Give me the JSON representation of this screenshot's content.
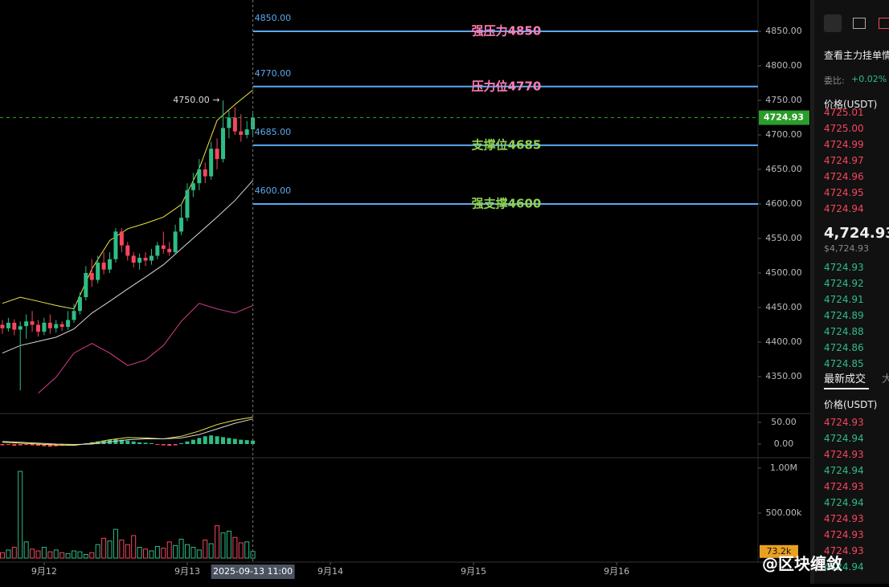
{
  "chart_data": [
    {
      "type": "candlestick",
      "x": [
        -7,
        -6,
        -5,
        -4,
        -3,
        -2,
        -1,
        0,
        1,
        2,
        3,
        4,
        5,
        6,
        7,
        8,
        9,
        10,
        11,
        12,
        13,
        14,
        15,
        16,
        17,
        18,
        19,
        20,
        21,
        22,
        23,
        24,
        25,
        26,
        27,
        28,
        29,
        30,
        31,
        32,
        33,
        34,
        35
      ],
      "open": [
        4425,
        4420,
        4428,
        4418,
        4423,
        4430,
        4425,
        4415,
        4428,
        4420,
        4426,
        4422,
        4432,
        4445,
        4465,
        4500,
        4490,
        4515,
        4505,
        4520,
        4560,
        4540,
        4525,
        4515,
        4522,
        4518,
        4525,
        4540,
        4535,
        4530,
        4560,
        4580,
        4620,
        4630,
        4650,
        4640,
        4680,
        4665,
        4710,
        4725,
        4705,
        4700,
        4708
      ],
      "high": [
        4432,
        4435,
        4433,
        4430,
        4440,
        4445,
        4432,
        4435,
        4440,
        4432,
        4430,
        4445,
        4455,
        4472,
        4510,
        4520,
        4525,
        4530,
        4530,
        4565,
        4565,
        4545,
        4530,
        4528,
        4530,
        4535,
        4545,
        4560,
        4545,
        4570,
        4600,
        4630,
        4645,
        4665,
        4660,
        4690,
        4695,
        4750,
        4735,
        4740,
        4730,
        4720,
        4732
      ],
      "low": [
        4412,
        4415,
        4410,
        4330,
        4405,
        4415,
        4408,
        4410,
        4412,
        4414,
        4416,
        4418,
        4428,
        4440,
        4460,
        4480,
        4485,
        4498,
        4500,
        4515,
        4530,
        4518,
        4508,
        4505,
        4510,
        4512,
        4520,
        4528,
        4525,
        4528,
        4555,
        4575,
        4610,
        4620,
        4630,
        4635,
        4650,
        4660,
        4695,
        4700,
        4690,
        4695,
        4700
      ],
      "close": [
        4420,
        4428,
        4418,
        4423,
        4430,
        4425,
        4415,
        4428,
        4420,
        4426,
        4422,
        4432,
        4445,
        4465,
        4500,
        4490,
        4515,
        4505,
        4520,
        4560,
        4540,
        4525,
        4515,
        4522,
        4518,
        4525,
        4540,
        4535,
        4530,
        4560,
        4580,
        4620,
        4630,
        4650,
        4640,
        4680,
        4665,
        4710,
        4725,
        4705,
        4700,
        4708,
        4724.93
      ],
      "up_color": "#2ebd85",
      "down_color": "#f6465d",
      "lines": [
        {
          "color": "#f0e442",
          "x": [
            -7,
            -4,
            -1,
            2,
            5,
            8,
            11,
            14,
            17,
            20,
            23,
            26,
            29,
            32,
            35
          ],
          "values": [
            4456,
            4465,
            4459,
            4453,
            4448,
            4506,
            4547,
            4564,
            4572,
            4581,
            4599,
            4651,
            4721,
            4744,
            4765
          ]
        },
        {
          "color": "#d8d8d8",
          "x": [
            -7,
            -4,
            -1,
            2,
            5,
            8,
            11,
            14,
            17,
            20,
            23,
            26,
            29,
            32,
            35
          ],
          "values": [
            4384,
            4395,
            4401,
            4407,
            4419,
            4442,
            4459,
            4477,
            4494,
            4512,
            4535,
            4558,
            4581,
            4605,
            4634
          ]
        },
        {
          "color": "#d63f8c",
          "x": [
            -7,
            -4,
            -1,
            2,
            5,
            8,
            11,
            14,
            17,
            20,
            23,
            26,
            29,
            32,
            35
          ],
          "values": [
            null,
            null,
            4326,
            4349,
            4384,
            4398,
            4384,
            4366,
            4374,
            4395,
            4430,
            4456,
            4448,
            4442,
            4453
          ]
        }
      ],
      "xlim": [
        -7.4,
        119.7
      ],
      "xticks": [
        {
          "value": 0,
          "label": "9月12"
        },
        {
          "value": 24,
          "label": "9月13"
        },
        {
          "value": 48,
          "label": "9月14"
        },
        {
          "value": 72,
          "label": "9月15"
        },
        {
          "value": 96,
          "label": "9月16"
        }
      ],
      "ylim": [
        4296.5,
        4895.3
      ],
      "yticks": [
        {
          "value": 4350,
          "label": "4350.00"
        },
        {
          "value": 4400,
          "label": "4400.00"
        },
        {
          "value": 4450,
          "label": "4450.00"
        },
        {
          "value": 4500,
          "label": "4500.00"
        },
        {
          "value": 4550,
          "label": "4550.00"
        },
        {
          "value": 4600,
          "label": "4600.00"
        },
        {
          "value": 4650,
          "label": "4650.00"
        },
        {
          "value": 4700,
          "label": "4700.00"
        },
        {
          "value": 4750,
          "label": "4750.00"
        },
        {
          "value": 4800,
          "label": "4800.00"
        },
        {
          "value": 4850,
          "label": "4850.00"
        }
      ],
      "levels": [
        {
          "value": 4850,
          "label": "4850.00",
          "text": "强压力4850",
          "color": "#ff7eb6"
        },
        {
          "value": 4770,
          "label": "4770.00",
          "text": "压力位4770",
          "color": "#ff7eb6"
        },
        {
          "value": 4685,
          "label": "4685.00",
          "text": "支撑位4685",
          "color": "#8fd14f"
        },
        {
          "value": 4600,
          "label": "4600.00",
          "text": "强支撑4600",
          "color": "#8fd14f"
        }
      ],
      "level_color": "#5aa9f0",
      "high_label": {
        "x": 30,
        "value": 4750,
        "label": "4750.00 →"
      },
      "last_price": {
        "value": 4724.93,
        "label": "4724.93",
        "color": "#2a9d2a"
      },
      "crosshair": {
        "x": 35,
        "label": "2025-09-13 11:00"
      }
    },
    {
      "type": "macd",
      "x": [
        -7,
        -6,
        -5,
        -4,
        -3,
        -2,
        -1,
        0,
        1,
        2,
        3,
        4,
        5,
        6,
        7,
        8,
        9,
        10,
        11,
        12,
        13,
        14,
        15,
        16,
        17,
        18,
        19,
        20,
        21,
        22,
        23,
        24,
        25,
        26,
        27,
        28,
        29,
        30,
        31,
        32,
        33,
        34,
        35
      ],
      "values": [
        -3,
        -2,
        -4,
        -3,
        -2,
        -3,
        -4,
        -5,
        -6,
        -5,
        -4,
        -3,
        -2,
        -1,
        2,
        4,
        6,
        8,
        10,
        12,
        10,
        8,
        6,
        4,
        3,
        2,
        -2,
        -3,
        -4,
        -3,
        2,
        6,
        10,
        14,
        18,
        20,
        18,
        16,
        14,
        12,
        10,
        9,
        8
      ],
      "up_color": "#2ebd85",
      "down_color": "#f6465d",
      "lines": [
        {
          "color": "#f0e442",
          "x": [
            -7,
            -4,
            -1,
            2,
            5,
            8,
            11,
            14,
            17,
            20,
            23,
            26,
            29,
            32,
            35
          ],
          "values": [
            4,
            2,
            0,
            -2,
            -3,
            2,
            10,
            15,
            14,
            12,
            18,
            30,
            45,
            55,
            62
          ]
        },
        {
          "color": "#d8d8d8",
          "x": [
            -7,
            -4,
            -1,
            2,
            5,
            8,
            11,
            14,
            17,
            20,
            23,
            26,
            29,
            32,
            35
          ],
          "values": [
            6,
            4,
            2,
            0,
            -1,
            0,
            5,
            10,
            12,
            12,
            14,
            22,
            35,
            48,
            58
          ]
        }
      ],
      "ylim": [
        -27.8,
        70.4
      ],
      "yticks": [
        {
          "value": 0,
          "label": "0.00"
        },
        {
          "value": 50,
          "label": "50.00"
        }
      ]
    },
    {
      "type": "volume",
      "x": [
        -7,
        -6,
        -5,
        -4,
        -3,
        -2,
        -1,
        0,
        1,
        2,
        3,
        4,
        5,
        6,
        7,
        8,
        9,
        10,
        11,
        12,
        13,
        14,
        15,
        16,
        17,
        18,
        19,
        20,
        21,
        22,
        23,
        24,
        25,
        26,
        27,
        28,
        29,
        30,
        31,
        32,
        33,
        34,
        35
      ],
      "values": [
        60000,
        90000,
        120000,
        964000,
        180000,
        100000,
        80000,
        120000,
        70000,
        90000,
        60000,
        50000,
        80000,
        70000,
        40000,
        60000,
        150000,
        220000,
        190000,
        320000,
        200000,
        150000,
        250000,
        120000,
        100000,
        80000,
        130000,
        110000,
        180000,
        140000,
        210000,
        150000,
        120000,
        90000,
        200000,
        160000,
        360000,
        280000,
        300000,
        230000,
        170000,
        180000,
        73200
      ],
      "ylim": [
        -17900,
        1071400
      ],
      "yticks": [
        {
          "value": 500000,
          "label": "500.00k"
        },
        {
          "value": 1000000,
          "label": "1.00M"
        }
      ],
      "last": {
        "value": 73200,
        "label": "73.2k",
        "color": "#e8a020"
      }
    }
  ],
  "order_book": {
    "hint": "查看主力挂单情",
    "ratio_label": "委比:",
    "ratio": "+0.02%",
    "price_header": "价格(USDT)",
    "asks": [
      "4725.01",
      "4725.00",
      "4724.99",
      "4724.97",
      "4724.96",
      "4724.95",
      "4724.94"
    ],
    "last_price": "4,724.93",
    "last_price_usd": "$4,724.93",
    "bids": [
      "4724.93",
      "4724.92",
      "4724.91",
      "4724.89",
      "4724.88",
      "4724.86",
      "4724.85"
    ]
  },
  "trades": {
    "title": "最新成交",
    "tab2": "大",
    "price_header": "价格(USDT)",
    "rows": [
      {
        "price": "4724.93",
        "color": "#f6465d"
      },
      {
        "price": "4724.94",
        "color": "#2ebd85"
      },
      {
        "price": "4724.93",
        "color": "#f6465d"
      },
      {
        "price": "4724.94",
        "color": "#2ebd85"
      },
      {
        "price": "4724.93",
        "color": "#f6465d"
      },
      {
        "price": "4724.94",
        "color": "#2ebd85"
      },
      {
        "price": "4724.93",
        "color": "#f6465d"
      },
      {
        "price": "4724.93",
        "color": "#f6465d"
      },
      {
        "price": "4724.93",
        "color": "#f6465d"
      },
      {
        "price": "4724.94",
        "color": "#2ebd85"
      }
    ]
  },
  "watermark": "@区块缠敛"
}
